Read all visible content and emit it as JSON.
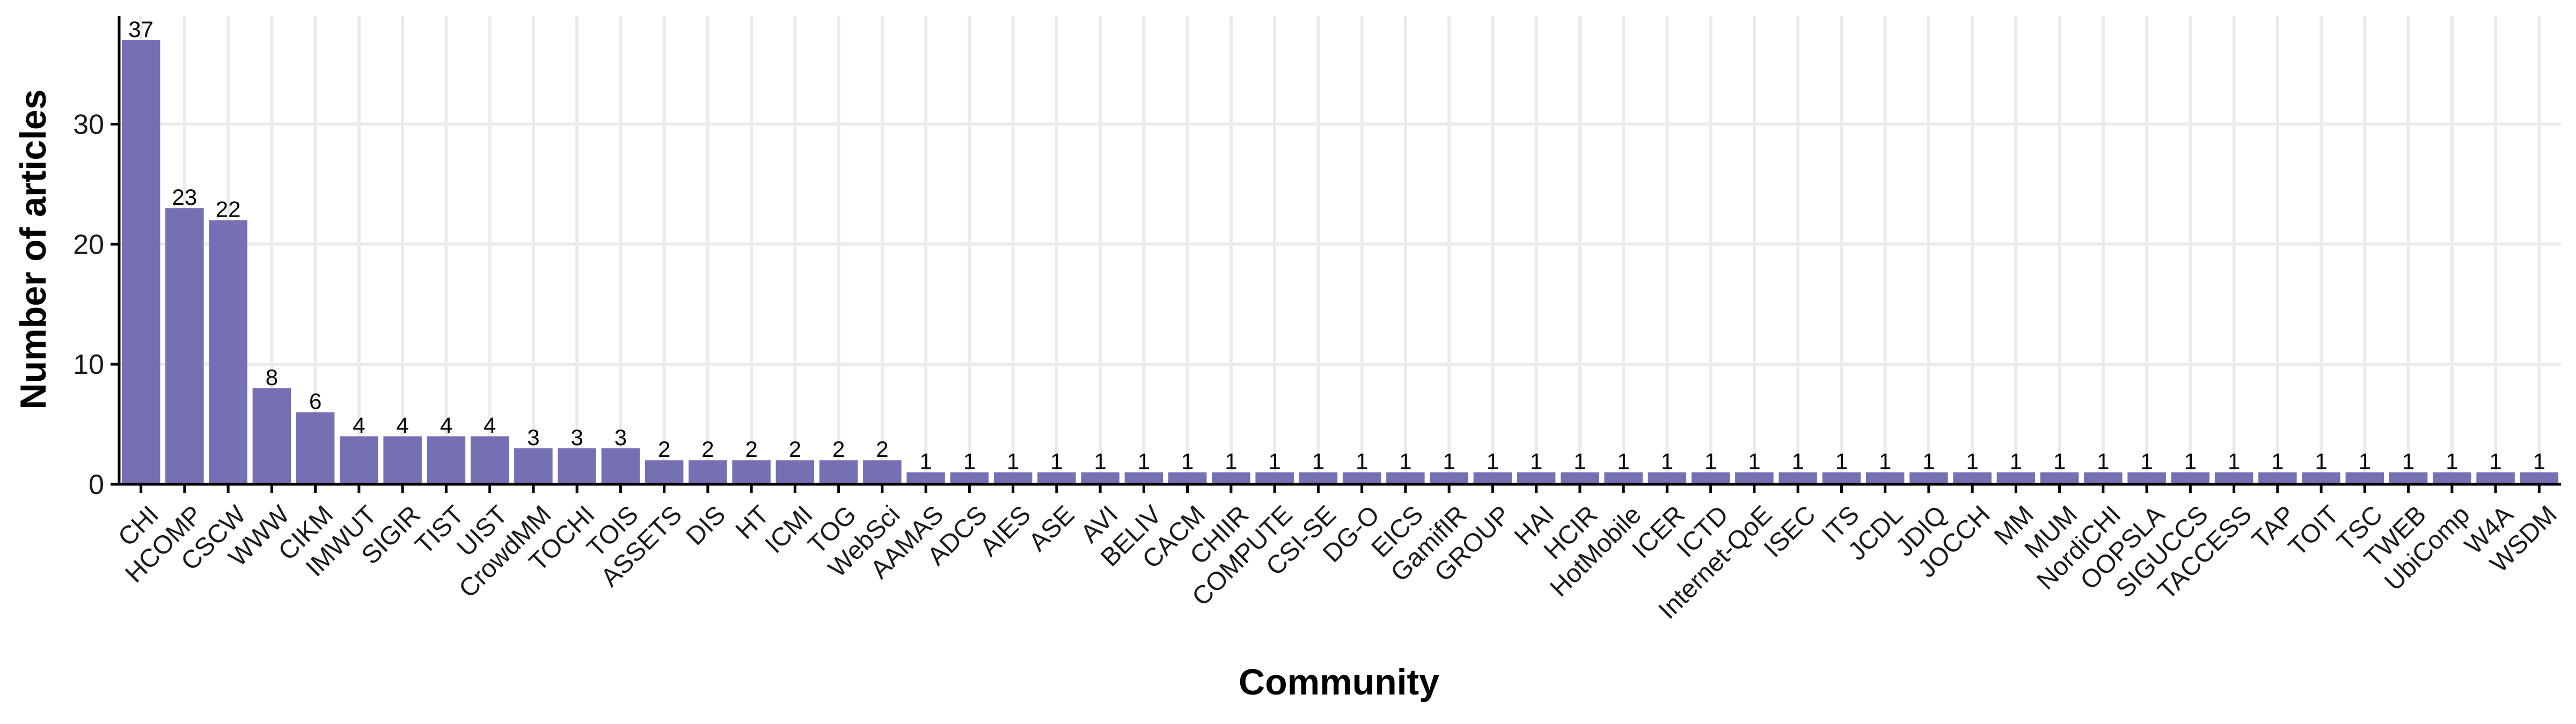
{
  "chart_data": {
    "type": "bar",
    "title": "",
    "xlabel": "Community",
    "ylabel": "Number of articles",
    "ylim": [
      0,
      39
    ],
    "yticks": [
      0,
      10,
      20,
      30
    ],
    "grid": true,
    "legend": "none",
    "bar_color": "#7570b3",
    "categories": [
      "CHI",
      "HCOMP",
      "CSCW",
      "WWW",
      "CIKM",
      "IMWUT",
      "SIGIR",
      "TIST",
      "UIST",
      "CrowdMM",
      "TOCHI",
      "TOIS",
      "ASSETS",
      "DIS",
      "HT",
      "ICMI",
      "TOG",
      "WebSci",
      "AAMAS",
      "ADCS",
      "AIES",
      "ASE",
      "AVI",
      "BELIV",
      "CACM",
      "CHIIR",
      "COMPUTE",
      "CSI-SE",
      "DG-O",
      "EICS",
      "GamifIR",
      "GROUP",
      "HAI",
      "HCIR",
      "HotMobile",
      "ICER",
      "ICTD",
      "Internet-QoE",
      "ISEC",
      "ITS",
      "JCDL",
      "JDIQ",
      "JOCCH",
      "MM",
      "MUM",
      "NordiCHI",
      "OOPSLA",
      "SIGUCCS",
      "TACCESS",
      "TAP",
      "TOIT",
      "TSC",
      "TWEB",
      "UbiComp",
      "W4A",
      "WSDM"
    ],
    "values": [
      37,
      23,
      22,
      8,
      6,
      4,
      4,
      4,
      4,
      3,
      3,
      3,
      2,
      2,
      2,
      2,
      2,
      2,
      1,
      1,
      1,
      1,
      1,
      1,
      1,
      1,
      1,
      1,
      1,
      1,
      1,
      1,
      1,
      1,
      1,
      1,
      1,
      1,
      1,
      1,
      1,
      1,
      1,
      1,
      1,
      1,
      1,
      1,
      1,
      1,
      1,
      1,
      1,
      1,
      1,
      1
    ]
  }
}
